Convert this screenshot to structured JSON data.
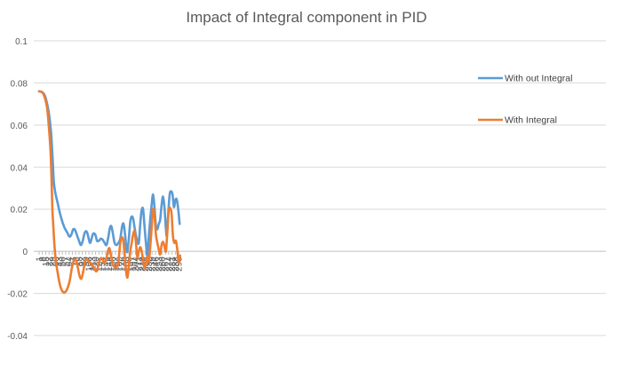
{
  "chart_data": {
    "type": "line",
    "title": "Impact of Integral component in PID",
    "xlabel": "",
    "ylabel": "",
    "ylim": [
      -0.04,
      0.1
    ],
    "yticks": [
      0.1,
      0.08,
      0.06,
      0.04,
      0.02,
      0,
      -0.02,
      -0.04
    ],
    "ytick_labels": [
      "0.1",
      "0.08",
      "0.06",
      "0.04",
      "0.02",
      "0",
      "-0.02",
      "-0.04"
    ],
    "xlim": [
      1,
      298
    ],
    "xtick_labels": [
      "1",
      "8",
      "15",
      "22",
      "29",
      "36",
      "43",
      "50",
      "57",
      "64",
      "71",
      "78",
      "85",
      "92",
      "99",
      "106",
      "113",
      "120",
      "127",
      "134",
      "141",
      "148",
      "155",
      "162",
      "169",
      "176",
      "183",
      "190",
      "197",
      "204",
      "211",
      "218",
      "225",
      "232",
      "239",
      "246",
      "253",
      "260",
      "267",
      "274",
      "281",
      "288",
      "295"
    ],
    "grid": "horizontal",
    "legend_position": "right",
    "series": [
      {
        "name": "With out Integral",
        "color": "#5b9bd5",
        "points": [
          [
            1,
            0.076
          ],
          [
            8,
            0.0755
          ],
          [
            13,
            0.074
          ],
          [
            18,
            0.07
          ],
          [
            22,
            0.065
          ],
          [
            26,
            0.057
          ],
          [
            28,
            0.05
          ],
          [
            30,
            0.042
          ],
          [
            32,
            0.033
          ],
          [
            35,
            0.028
          ],
          [
            40,
            0.023
          ],
          [
            45,
            0.018
          ],
          [
            50,
            0.014
          ],
          [
            55,
            0.011
          ],
          [
            60,
            0.009
          ],
          [
            65,
            0.007
          ],
          [
            69,
            0.008
          ],
          [
            73,
            0.0105
          ],
          [
            77,
            0.01
          ],
          [
            81,
            0.0075
          ],
          [
            85,
            0.005
          ],
          [
            89,
            0.003
          ],
          [
            93,
            0.005
          ],
          [
            96,
            0.008
          ],
          [
            99,
            0.0095
          ],
          [
            102,
            0.009
          ],
          [
            105,
            0.0065
          ],
          [
            108,
            0.004
          ],
          [
            111,
            0.0055
          ],
          [
            114,
            0.008
          ],
          [
            117,
            0.0085
          ],
          [
            120,
            0.0075
          ],
          [
            123,
            0.005
          ],
          [
            127,
            0.005
          ],
          [
            131,
            0.006
          ],
          [
            135,
            0.0055
          ],
          [
            139,
            0.004
          ],
          [
            143,
            0.003
          ],
          [
            147,
            0.007
          ],
          [
            150,
            0.011
          ],
          [
            153,
            0.012
          ],
          [
            156,
            0.009
          ],
          [
            160,
            0.004
          ],
          [
            164,
            0.003
          ],
          [
            168,
            0.004
          ],
          [
            172,
            0.006
          ],
          [
            176,
            0.012
          ],
          [
            179,
            0.013
          ],
          [
            182,
            0.008
          ],
          [
            185,
            0.001
          ],
          [
            187,
            0.0
          ],
          [
            190,
            0.006
          ],
          [
            193,
            0.014
          ],
          [
            196,
            0.0165
          ],
          [
            199,
            0.0155
          ],
          [
            202,
            0.0115
          ],
          [
            205,
            0.0075
          ],
          [
            208,
            0.005
          ],
          [
            211,
            0.004
          ],
          [
            214,
            0.013
          ],
          [
            217,
            0.0195
          ],
          [
            220,
            0.02
          ],
          [
            223,
            0.012
          ],
          [
            226,
            0.004
          ],
          [
            229,
            -0.002
          ],
          [
            232,
            0.007
          ],
          [
            235,
            0.015
          ],
          [
            238,
            0.022
          ],
          [
            241,
            0.027
          ],
          [
            244,
            0.021
          ],
          [
            247,
            0.012
          ],
          [
            250,
            0.0105
          ],
          [
            253,
            0.013
          ],
          [
            256,
            0.015
          ],
          [
            259,
            0.022
          ],
          [
            262,
            0.026
          ],
          [
            265,
            0.021
          ],
          [
            268,
            0.011
          ],
          [
            270,
            0.0075
          ],
          [
            273,
            0.018
          ],
          [
            276,
            0.027
          ],
          [
            279,
            0.0285
          ],
          [
            282,
            0.027
          ],
          [
            285,
            0.021
          ],
          [
            288,
            0.0245
          ],
          [
            291,
            0.0245
          ],
          [
            294,
            0.02
          ],
          [
            297,
            0.013
          ]
        ]
      },
      {
        "name": "With Integral",
        "color": "#ed7d31",
        "points": [
          [
            1,
            0.076
          ],
          [
            8,
            0.0755
          ],
          [
            13,
            0.073
          ],
          [
            18,
            0.068
          ],
          [
            22,
            0.058
          ],
          [
            25,
            0.048
          ],
          [
            27,
            0.036
          ],
          [
            29,
            0.02
          ],
          [
            31,
            0.012
          ],
          [
            33,
            0.004
          ],
          [
            36,
            -0.004
          ],
          [
            40,
            -0.01
          ],
          [
            45,
            -0.016
          ],
          [
            50,
            -0.019
          ],
          [
            55,
            -0.0195
          ],
          [
            60,
            -0.018
          ],
          [
            65,
            -0.0145
          ],
          [
            70,
            -0.008
          ],
          [
            74,
            -0.0045
          ],
          [
            78,
            -0.004
          ],
          [
            82,
            -0.007
          ],
          [
            86,
            -0.0115
          ],
          [
            90,
            -0.013
          ],
          [
            94,
            -0.0095
          ],
          [
            98,
            -0.0045
          ],
          [
            102,
            -0.004
          ],
          [
            106,
            -0.005
          ],
          [
            110,
            -0.0055
          ],
          [
            114,
            -0.007
          ],
          [
            118,
            -0.0085
          ],
          [
            122,
            -0.0095
          ],
          [
            126,
            -0.0065
          ],
          [
            130,
            -0.0035
          ],
          [
            134,
            -0.0035
          ],
          [
            138,
            -0.0055
          ],
          [
            142,
            -0.004
          ],
          [
            146,
            0.0
          ],
          [
            149,
            0.0015
          ],
          [
            152,
            -0.0015
          ],
          [
            156,
            -0.006
          ],
          [
            160,
            -0.0075
          ],
          [
            164,
            -0.0075
          ],
          [
            168,
            -0.005
          ],
          [
            172,
            0.004
          ],
          [
            175,
            0.0065
          ],
          [
            178,
            0.0055
          ],
          [
            181,
            -0.001
          ],
          [
            184,
            -0.009
          ],
          [
            187,
            -0.0125
          ],
          [
            190,
            -0.007
          ],
          [
            193,
            0.0
          ],
          [
            196,
            0.004
          ],
          [
            199,
            0.008
          ],
          [
            202,
            0.0095
          ],
          [
            205,
            0.004
          ],
          [
            208,
            -0.003
          ],
          [
            211,
            0.0
          ],
          [
            214,
            0.002
          ],
          [
            217,
            0.0
          ],
          [
            220,
            -0.004
          ],
          [
            223,
            -0.008
          ],
          [
            226,
            -0.006
          ],
          [
            229,
            -0.0025
          ],
          [
            232,
            -0.005
          ],
          [
            235,
            0.002
          ],
          [
            238,
            0.011
          ],
          [
            241,
            0.02
          ],
          [
            244,
            0.017
          ],
          [
            247,
            0.008
          ],
          [
            250,
            0.004
          ],
          [
            253,
            0.001
          ],
          [
            256,
            -0.0015
          ],
          [
            259,
            0.003
          ],
          [
            262,
            0.0045
          ],
          [
            265,
            0.0025
          ],
          [
            268,
            0.0
          ],
          [
            271,
            0.009
          ],
          [
            274,
            0.0195
          ],
          [
            277,
            0.0205
          ],
          [
            280,
            0.018
          ],
          [
            283,
            0.007
          ],
          [
            286,
            0.004
          ],
          [
            289,
            0.005
          ],
          [
            292,
            0.001
          ],
          [
            295,
            -0.0055
          ],
          [
            298,
            -0.002
          ]
        ]
      }
    ]
  }
}
